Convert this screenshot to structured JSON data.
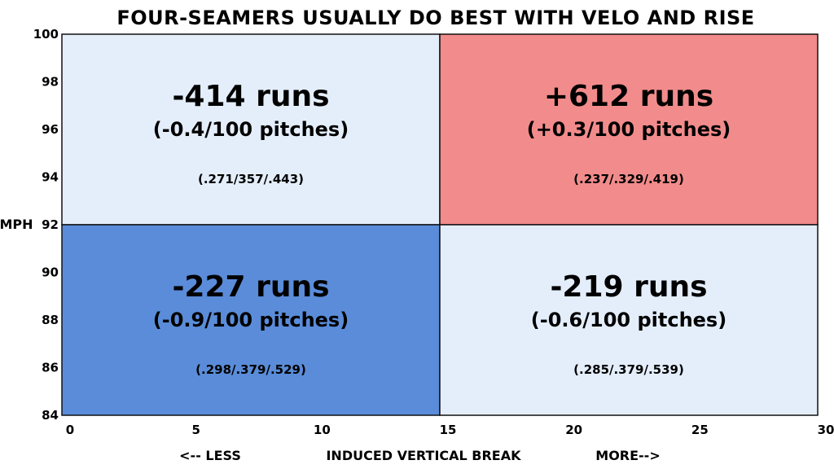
{
  "chart_data": {
    "type": "heatmap",
    "title": "FOUR-SEAMERS USUALLY DO BEST WITH VELO AND RISE",
    "xlabel": "INDUCED VERTICAL BREAK",
    "x_less_label": "<-- LESS",
    "x_more_label": "MORE-->",
    "ylabel": "MPH",
    "xlim": [
      0,
      30
    ],
    "ylim": [
      84,
      100
    ],
    "x_ticks": [
      0,
      5,
      10,
      15,
      20,
      25,
      30
    ],
    "y_ticks": [
      84,
      86,
      88,
      90,
      92,
      94,
      96,
      98,
      100
    ],
    "x_split": 15,
    "y_split": 92,
    "grid": false,
    "cells": [
      {
        "id": "low-ivb-high-velo",
        "x_range": [
          0,
          15
        ],
        "y_range": [
          92,
          100
        ],
        "runs": "-414 runs",
        "per100": "(-0.4/100 pitches)",
        "slash": "(.271/357/.443)",
        "color": "#e4eefb"
      },
      {
        "id": "high-ivb-high-velo",
        "x_range": [
          15,
          30
        ],
        "y_range": [
          92,
          100
        ],
        "runs": "+612 runs",
        "per100": "(+0.3/100 pitches)",
        "slash": "(.237/.329/.419)",
        "color": "#f28b8b"
      },
      {
        "id": "low-ivb-low-velo",
        "x_range": [
          0,
          15
        ],
        "y_range": [
          84,
          92
        ],
        "runs": "-227 runs",
        "per100": "(-0.9/100 pitches)",
        "slash": "(.298/.379/.529)",
        "color": "#5a8cd9"
      },
      {
        "id": "high-ivb-low-velo",
        "x_range": [
          15,
          30
        ],
        "y_range": [
          84,
          92
        ],
        "runs": "-219 runs",
        "per100": "(-0.6/100 pitches)",
        "slash": "(.285/.379/.539)",
        "color": "#e4eefb"
      }
    ]
  }
}
